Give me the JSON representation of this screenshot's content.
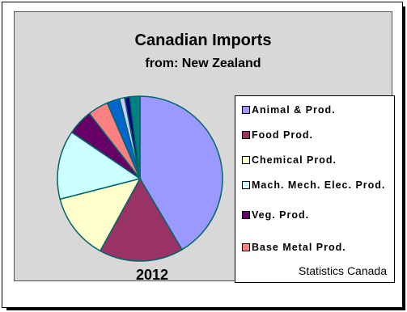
{
  "chart_data": {
    "type": "pie",
    "title": "Canadian Imports",
    "subtitle": "from:  New Zealand",
    "year_label": "2012",
    "source": "Statistics Canada",
    "legend_position": "right",
    "slices": [
      {
        "label": "Animal & Prod.",
        "value": 41.5,
        "color": "#9999ff"
      },
      {
        "label": "Food Prod.",
        "value": 16.5,
        "color": "#993366"
      },
      {
        "label": "Chemical Prod.",
        "value": 13.0,
        "color": "#ffffcc"
      },
      {
        "label": "Mach. Mech. Elec. Prod.",
        "value": 13.5,
        "color": "#ccffff"
      },
      {
        "label": "Veg. Prod.",
        "value": 5.0,
        "color": "#660066"
      },
      {
        "label": "Base Metal Prod.",
        "value": 4.0,
        "color": "#ff8080"
      },
      {
        "label": "",
        "value": 2.5,
        "color": "#0066cc"
      },
      {
        "label": "",
        "value": 1.0,
        "color": "#ccccff"
      },
      {
        "label": "",
        "value": 1.0,
        "color": "#000080"
      },
      {
        "label": "",
        "value": 2.0,
        "color": "#008080"
      }
    ]
  }
}
